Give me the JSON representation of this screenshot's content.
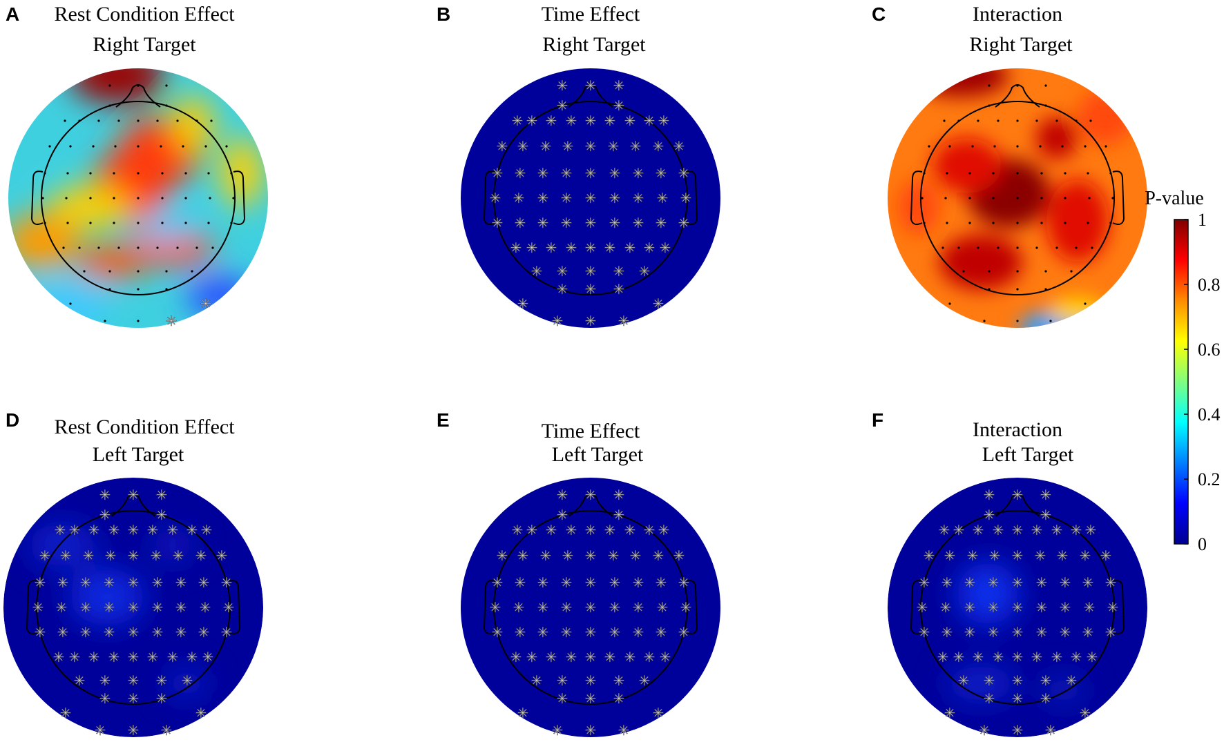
{
  "figure": {
    "panels": [
      {
        "id": "A",
        "letter": "A",
        "title_line1": "Rest Condition Effect",
        "title_line2": "Right Target",
        "map": "mixed-high",
        "marker": "sparse",
        "stars_shown": 2
      },
      {
        "id": "B",
        "letter": "B",
        "title_line1": "Time Effect",
        "title_line2": "Right Target",
        "map": "all-low",
        "marker": "star",
        "stars_shown": 64
      },
      {
        "id": "C",
        "letter": "C",
        "title_line1": "Interaction",
        "title_line2": "Right Target",
        "map": "mostly-high",
        "marker": "dot",
        "stars_shown": 0
      },
      {
        "id": "D",
        "letter": "D",
        "title_line1": "Rest Condition Effect",
        "title_line2": "Left Target",
        "map": "all-low",
        "marker": "star",
        "stars_shown": 64
      },
      {
        "id": "E",
        "letter": "E",
        "title_line1": "Time Effect",
        "title_line2": "Left Target",
        "map": "all-low",
        "marker": "star",
        "stars_shown": 64
      },
      {
        "id": "F",
        "letter": "F",
        "title_line1": "Interaction",
        "title_line2": "Left Target",
        "map": "all-low",
        "marker": "star",
        "stars_shown": 64
      }
    ],
    "colorbar": {
      "title": "P-value",
      "ticks": [
        "1",
        "0.8",
        "0.6",
        "0.4",
        "0.2",
        "0"
      ],
      "range": [
        0,
        1
      ],
      "colormap": [
        "#00008f",
        "#0000ff",
        "#00ffff",
        "#ffff00",
        "#ff7f00",
        "#ff0000",
        "#800000"
      ]
    }
  },
  "chart_data": {
    "type": "heatmap",
    "title": "",
    "subplots": [
      "Rest Condition Effect Right Target",
      "Time Effect Right Target",
      "Interaction Right Target",
      "Rest Condition Effect Left Target",
      "Time Effect Left Target",
      "Interaction Left Target"
    ],
    "colorbar_label": "P-value",
    "colorbar_ticks": [
      0,
      0.2,
      0.4,
      0.6,
      0.8,
      1
    ],
    "vlim": [
      0,
      1
    ]
  }
}
